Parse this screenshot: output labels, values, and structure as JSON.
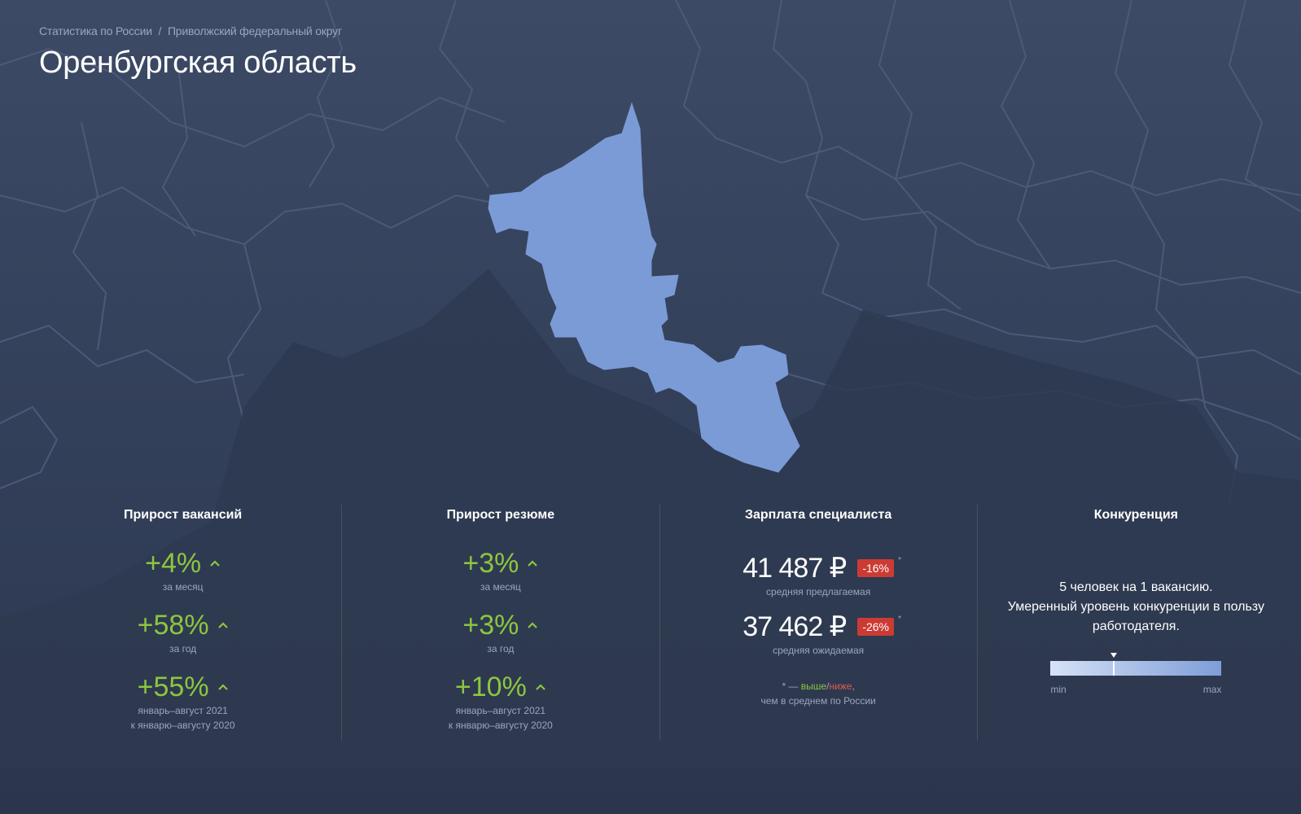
{
  "breadcrumb": {
    "root": "Статистика по России",
    "separator": "/",
    "parent": "Приволжский федеральный округ"
  },
  "page_title": "Оренбургская область",
  "map": {
    "highlight_color": "#7b9bd6",
    "base_color": "#3a4763",
    "border_color": "#4f5d7a"
  },
  "stats": {
    "vacancies": {
      "title": "Прирост вакансий",
      "items": [
        {
          "value": "+4%",
          "label": "за месяц",
          "icon": "arrow-up-icon"
        },
        {
          "value": "+58%",
          "label": "за год",
          "icon": "arrow-up-icon"
        },
        {
          "value": "+55%",
          "label_line1": "январь–август 2021",
          "label_line2": "к январю–августу 2020",
          "icon": "arrow-up-icon"
        }
      ]
    },
    "resumes": {
      "title": "Прирост резюме",
      "items": [
        {
          "value": "+3%",
          "label": "за месяц",
          "icon": "arrow-up-icon"
        },
        {
          "value": "+3%",
          "label": "за год",
          "icon": "arrow-up-icon"
        },
        {
          "value": "+10%",
          "label_line1": "январь–август 2021",
          "label_line2": "к январю–августу 2020",
          "icon": "arrow-up-icon"
        }
      ]
    },
    "salary": {
      "title": "Зарплата специалиста",
      "offered": {
        "value": "41 487 ₽",
        "badge": "-16%",
        "star": "*",
        "label": "средняя предлагаемая"
      },
      "expected": {
        "value": "37 462 ₽",
        "badge": "-26%",
        "star": "*",
        "label": "средняя ожидаемая"
      },
      "footnote": {
        "prefix": "* — ",
        "higher": "выше",
        "slash": "/",
        "lower": "ниже",
        "comma": ",",
        "line2": "чем в среднем по России"
      }
    },
    "competition": {
      "title": "Конкуренция",
      "text_line1": "5 человек на 1 вакансию.",
      "text_line2": "Умеренный уровень конкуренции в пользу работодателя.",
      "scale_min": "min",
      "scale_max": "max",
      "level": 0.37
    }
  },
  "colors": {
    "positive": "#8cc63f",
    "negative_badge": "#cc3b33",
    "muted_text": "#9aa6bd"
  }
}
